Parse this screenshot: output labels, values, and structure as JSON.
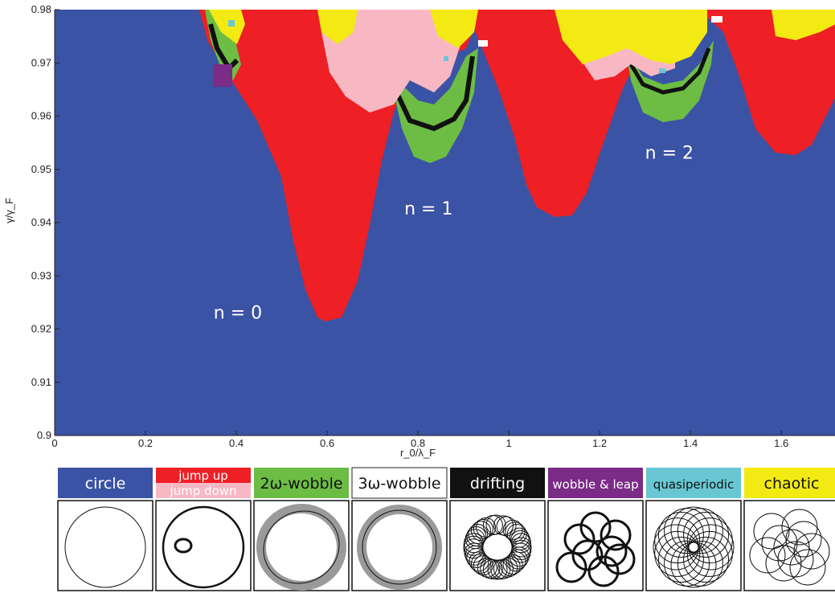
{
  "chart_data": {
    "type": "heatmap",
    "title": "",
    "xlabel": "r_0/λ_F",
    "ylabel": "γ/γ_F",
    "xlim": [
      0,
      1.72
    ],
    "ylim": [
      0.9,
      0.98
    ],
    "x_ticks": [
      "0",
      "0.2",
      "0.4",
      "0.6",
      "0.8",
      "1",
      "1.2",
      "1.4",
      "1.6"
    ],
    "y_ticks": [
      "0.9",
      "0.91",
      "0.92",
      "0.93",
      "0.94",
      "0.95",
      "0.96",
      "0.97",
      "0.98"
    ],
    "x_tick_values": [
      0,
      0.2,
      0.4,
      0.6,
      0.8,
      1.0,
      1.2,
      1.4,
      1.6
    ],
    "y_tick_values": [
      0.9,
      0.91,
      0.92,
      0.93,
      0.94,
      0.95,
      0.96,
      0.97,
      0.98
    ],
    "region_labels": [
      {
        "text": "n = 0",
        "x": 0.35,
        "y": 0.922
      },
      {
        "text": "n = 1",
        "x": 0.77,
        "y": 0.9415
      },
      {
        "text": "n = 2",
        "x": 1.3,
        "y": 0.952
      }
    ],
    "categories": [
      {
        "key": "circle",
        "label": "circle",
        "color": "#3b53a4"
      },
      {
        "key": "jump",
        "label_top": "jump up",
        "label_bottom": "jump down",
        "color": "#ee1f25",
        "color_secondary": "#f7b8c4"
      },
      {
        "key": "wobble2",
        "label": "2ω-wobble",
        "color": "#6dbd45"
      },
      {
        "key": "wobble3",
        "label": "3ω-wobble",
        "color": "#ffffff"
      },
      {
        "key": "drifting",
        "label": "drifting",
        "color": "#111111"
      },
      {
        "key": "wobble_leap",
        "label": "wobble & leap",
        "color": "#7a2c86"
      },
      {
        "key": "quasiperiodic",
        "label": "quasiperiodic",
        "color": "#68c7d3"
      },
      {
        "key": "chaotic",
        "label": "chaotic",
        "color": "#f2ea12"
      }
    ]
  }
}
